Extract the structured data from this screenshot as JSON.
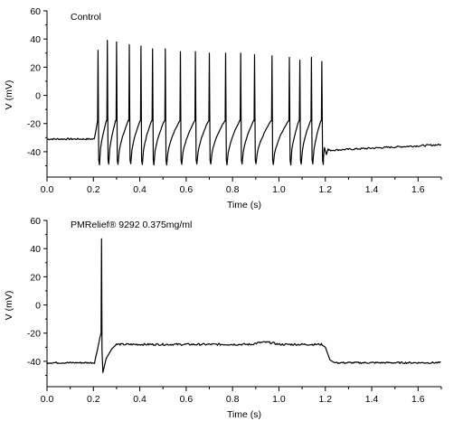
{
  "chart_data": [
    {
      "type": "line",
      "annotation": "Control",
      "xlabel": "Time (s)",
      "ylabel": "V (mV)",
      "xlim": [
        0,
        1.7
      ],
      "ylim": [
        -58,
        60
      ],
      "xticks": [
        "0.0",
        "0.2",
        "0.4",
        "0.6",
        "0.8",
        "1.0",
        "1.2",
        "1.4",
        "1.6"
      ],
      "yticks": [
        "60",
        "40",
        "20",
        "0",
        "-20",
        "-40"
      ],
      "series": [
        {
          "baseline_before_mV": -31,
          "baseline_after_mV": -37,
          "stimulus_start_s": 0.205,
          "stimulus_end_s": 1.2,
          "spike_times_s": [
            0.22,
            0.26,
            0.3,
            0.355,
            0.405,
            0.455,
            0.51,
            0.575,
            0.64,
            0.7,
            0.77,
            0.835,
            0.895,
            0.97,
            1.045,
            1.09,
            1.14,
            1.185
          ],
          "spike_peaks_mV": [
            32,
            39,
            38,
            36,
            35,
            33,
            33,
            31,
            31,
            30,
            30,
            30,
            29,
            28,
            27,
            25,
            27,
            24
          ],
          "trough_mV": -49
        }
      ]
    },
    {
      "type": "line",
      "annotation": "PMRelief® 9292 0.375mg/ml",
      "xlabel": "Time (s)",
      "ylabel": "V (mV)",
      "xlim": [
        0,
        1.7
      ],
      "ylim": [
        -58,
        60
      ],
      "xticks": [
        "0.0",
        "0.2",
        "0.4",
        "0.6",
        "0.8",
        "1.0",
        "1.2",
        "1.4",
        "1.6"
      ],
      "yticks": [
        "60",
        "40",
        "20",
        "0",
        "-20",
        "-40"
      ],
      "series": [
        {
          "baseline_before_mV": -41,
          "baseline_after_mV": -41,
          "stimulus_start_s": 0.205,
          "stimulus_end_s": 1.2,
          "spike_times_s": [
            0.235
          ],
          "spike_peaks_mV": [
            47
          ],
          "trough_mV": -48,
          "plateau_mV": -28
        }
      ]
    }
  ]
}
